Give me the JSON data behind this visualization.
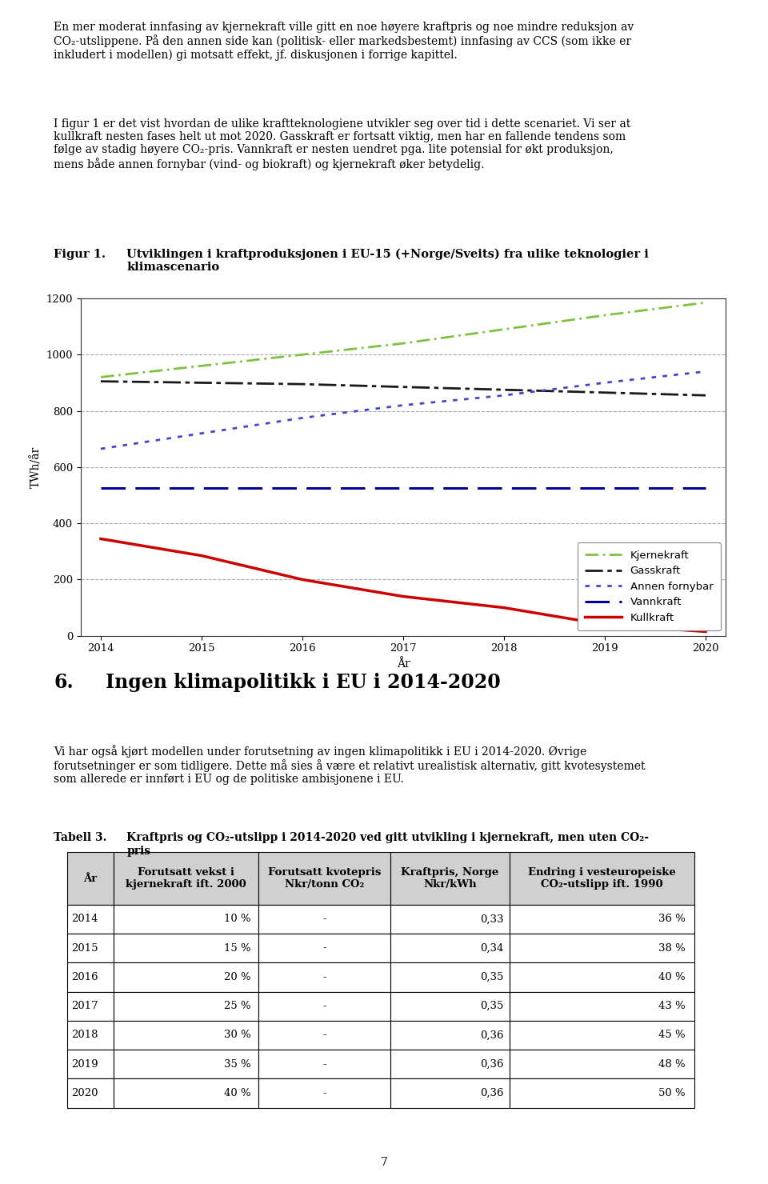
{
  "years": [
    2014,
    2015,
    2016,
    2017,
    2018,
    2019,
    2020
  ],
  "kjernekraft": [
    920,
    960,
    1000,
    1040,
    1090,
    1140,
    1185
  ],
  "gasskraft": [
    905,
    900,
    895,
    885,
    875,
    865,
    855
  ],
  "annen_fornybar": [
    665,
    720,
    775,
    820,
    855,
    900,
    940
  ],
  "vannkraft": [
    525,
    525,
    525,
    525,
    525,
    525,
    525
  ],
  "kullkraft": [
    345,
    285,
    200,
    140,
    100,
    40,
    15
  ],
  "ylabel": "TWh/år",
  "xlabel": "År",
  "ylim": [
    0,
    1200
  ],
  "yticks": [
    0,
    200,
    400,
    600,
    800,
    1000,
    1200
  ],
  "colors": {
    "kjernekraft": "#7fc241",
    "gasskraft": "#1a1a1a",
    "annen_fornybar": "#4444cc",
    "vannkraft": "#000099",
    "kullkraft": "#cc0000"
  },
  "body_text_para1": "En mer moderat innfasing av kjernekraft ville gitt en noe høyere kraftpris og noe mindre reduksjon av\nCO₂-utslippene. På den annen side kan (politisk- eller markedsbestemt) innfasing av CCS (som ikke er\ninkludert i modellen) gi motsatt effekt, jf. diskusjonen i forrige kapittel.",
  "body_text_para2": "I figur 1 er det vist hvordan de ulike kraftteknologiene utvikler seg over tid i dette scenariet. Vi ser at\nkullkraft nesten fases helt ut mot 2020. Gasskraft er fortsatt viktig, men har en fallende tendens som\nfølge av stadig høyere CO₂-pris. Vannkraft er nesten uendret pga. lite potensial for økt produksjon,\nmens både annen fornybar (vind- og biokraft) og kjernekraft øker betydelig.",
  "fig_label": "Figur 1.",
  "fig_title_text": "Utviklingen i kraftproduksjonen i EU-15 (+Norge/Sveits) fra ulike teknologier i\nklimascenario",
  "section_num": "6.",
  "section_title": "Ingen klimapolitikk i EU i 2014-2020",
  "section_body": "Vi har også kjørt modellen under forutsetning av ingen klimapolitikk i EU i 2014-2020. Øvrige\nforutsetninger er som tidligere. Dette må sies å være et relativt urealistisk alternativ, gitt kvotesystemet\nsom allerede er innført i EU og de politiske ambisjonene i EU.",
  "table_label": "Tabell 3.",
  "table_title_text": "Kraftpris og CO₂-utslipp i 2014-2020 ved gitt utvikling i kjernekraft, men uten CO₂-\npris",
  "table_headers": [
    "År",
    "Forutsatt vekst i\nkjernekraft ift. 2000",
    "Forutsatt kvotepris\nNkr/tonn CO₂",
    "Kraftpris, Norge\nNkr/kWh",
    "Endring i vesteuropeiske\nCO₂-utslipp ift. 1990"
  ],
  "table_data": [
    [
      "2014",
      "10 %",
      "-",
      "0,33",
      "36 %"
    ],
    [
      "2015",
      "15 %",
      "-",
      "0,34",
      "38 %"
    ],
    [
      "2016",
      "20 %",
      "-",
      "0,35",
      "40 %"
    ],
    [
      "2017",
      "25 %",
      "-",
      "0,35",
      "43 %"
    ],
    [
      "2018",
      "30 %",
      "-",
      "0,36",
      "45 %"
    ],
    [
      "2019",
      "35 %",
      "-",
      "0,36",
      "48 %"
    ],
    [
      "2020",
      "40 %",
      "-",
      "0,36",
      "50 %"
    ]
  ],
  "page_number": "7",
  "col_aligns": [
    "left",
    "right",
    "center",
    "right",
    "right"
  ]
}
